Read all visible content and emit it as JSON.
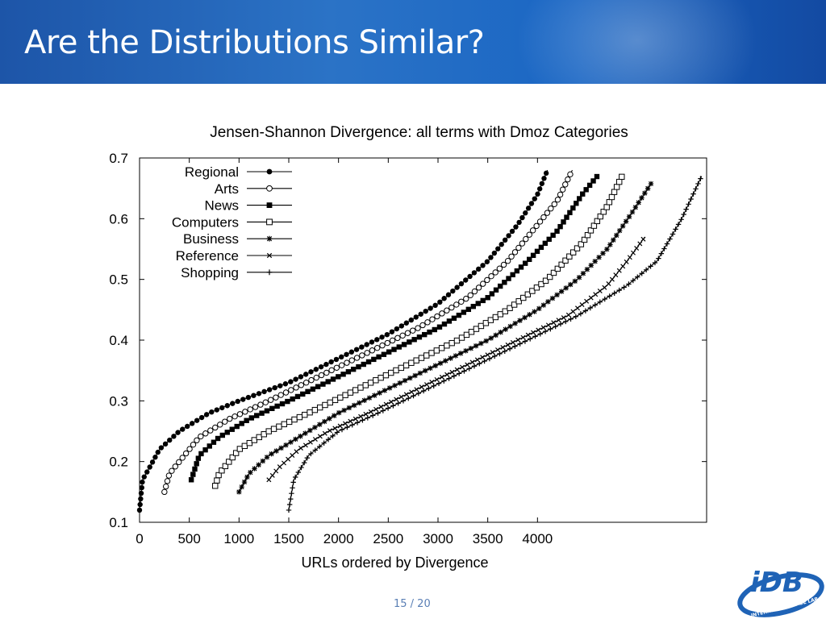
{
  "slide": {
    "title": "Are the Distributions Similar?",
    "page_number": "15 / 20",
    "logo": {
      "text": "iDB",
      "ring_text": "INTERNET DATABASE LAB"
    }
  },
  "colors": {
    "banner": "#1d55a8",
    "title_text": "#ffffff",
    "series": "#000000",
    "page_number": "#5a7fb5",
    "logo_blue": "#1f63b6"
  },
  "chart_data": {
    "type": "scatter",
    "title": "Jensen-Shannon Divergence: all terms with Dmoz Categories",
    "xlabel": "URLs ordered by Divergence",
    "ylabel": "",
    "xlim": [
      0,
      5700
    ],
    "ylim": [
      0.1,
      0.7
    ],
    "xticks": [
      0,
      500,
      1000,
      1500,
      2000,
      2500,
      3000,
      3500,
      4000
    ],
    "yticks": [
      0.1,
      0.2,
      0.3,
      0.4,
      0.5,
      0.6,
      0.7
    ],
    "legend_position": "top-left",
    "grid": false,
    "series": [
      {
        "name": "Regional",
        "marker": "filled-circle",
        "points": [
          [
            0,
            0.12
          ],
          [
            30,
            0.17
          ],
          [
            100,
            0.19
          ],
          [
            200,
            0.22
          ],
          [
            400,
            0.25
          ],
          [
            700,
            0.28
          ],
          [
            1000,
            0.3
          ],
          [
            1500,
            0.33
          ],
          [
            2000,
            0.37
          ],
          [
            2500,
            0.41
          ],
          [
            3000,
            0.46
          ],
          [
            3500,
            0.53
          ],
          [
            3800,
            0.59
          ],
          [
            4000,
            0.64
          ],
          [
            4100,
            0.68
          ]
        ]
      },
      {
        "name": "Arts",
        "marker": "open-circle",
        "points": [
          [
            250,
            0.15
          ],
          [
            300,
            0.18
          ],
          [
            400,
            0.2
          ],
          [
            600,
            0.24
          ],
          [
            900,
            0.27
          ],
          [
            1300,
            0.3
          ],
          [
            1800,
            0.34
          ],
          [
            2300,
            0.38
          ],
          [
            2800,
            0.42
          ],
          [
            3300,
            0.47
          ],
          [
            3700,
            0.53
          ],
          [
            4000,
            0.59
          ],
          [
            4200,
            0.63
          ],
          [
            4350,
            0.68
          ]
        ]
      },
      {
        "name": "News",
        "marker": "filled-square",
        "points": [
          [
            520,
            0.17
          ],
          [
            600,
            0.21
          ],
          [
            800,
            0.24
          ],
          [
            1100,
            0.27
          ],
          [
            1500,
            0.3
          ],
          [
            2000,
            0.34
          ],
          [
            2500,
            0.38
          ],
          [
            3000,
            0.42
          ],
          [
            3500,
            0.47
          ],
          [
            3900,
            0.53
          ],
          [
            4200,
            0.58
          ],
          [
            4450,
            0.64
          ],
          [
            4600,
            0.67
          ]
        ]
      },
      {
        "name": "Computers",
        "marker": "open-square",
        "points": [
          [
            760,
            0.16
          ],
          [
            800,
            0.18
          ],
          [
            1000,
            0.22
          ],
          [
            1300,
            0.25
          ],
          [
            1700,
            0.28
          ],
          [
            2200,
            0.32
          ],
          [
            2700,
            0.36
          ],
          [
            3200,
            0.4
          ],
          [
            3700,
            0.45
          ],
          [
            4100,
            0.5
          ],
          [
            4450,
            0.56
          ],
          [
            4700,
            0.62
          ],
          [
            4850,
            0.67
          ]
        ]
      },
      {
        "name": "Business",
        "marker": "asterisk",
        "points": [
          [
            1000,
            0.15
          ],
          [
            1100,
            0.18
          ],
          [
            1300,
            0.21
          ],
          [
            1600,
            0.24
          ],
          [
            2000,
            0.28
          ],
          [
            2500,
            0.32
          ],
          [
            3000,
            0.36
          ],
          [
            3500,
            0.4
          ],
          [
            4000,
            0.45
          ],
          [
            4400,
            0.5
          ],
          [
            4700,
            0.55
          ],
          [
            4950,
            0.61
          ],
          [
            5150,
            0.66
          ]
        ]
      },
      {
        "name": "Reference",
        "marker": "cross",
        "points": [
          [
            1300,
            0.17
          ],
          [
            1400,
            0.19
          ],
          [
            1600,
            0.22
          ],
          [
            1900,
            0.25
          ],
          [
            2300,
            0.28
          ],
          [
            2800,
            0.32
          ],
          [
            3300,
            0.36
          ],
          [
            3800,
            0.4
          ],
          [
            4300,
            0.44
          ],
          [
            4700,
            0.49
          ],
          [
            4900,
            0.53
          ],
          [
            5080,
            0.57
          ]
        ]
      },
      {
        "name": "Shopping",
        "marker": "plus",
        "points": [
          [
            1500,
            0.12
          ],
          [
            1550,
            0.17
          ],
          [
            1700,
            0.21
          ],
          [
            2000,
            0.25
          ],
          [
            2400,
            0.28
          ],
          [
            2900,
            0.32
          ],
          [
            3400,
            0.36
          ],
          [
            3900,
            0.4
          ],
          [
            4400,
            0.44
          ],
          [
            4900,
            0.49
          ],
          [
            5200,
            0.53
          ],
          [
            5450,
            0.6
          ],
          [
            5650,
            0.67
          ]
        ]
      }
    ]
  }
}
